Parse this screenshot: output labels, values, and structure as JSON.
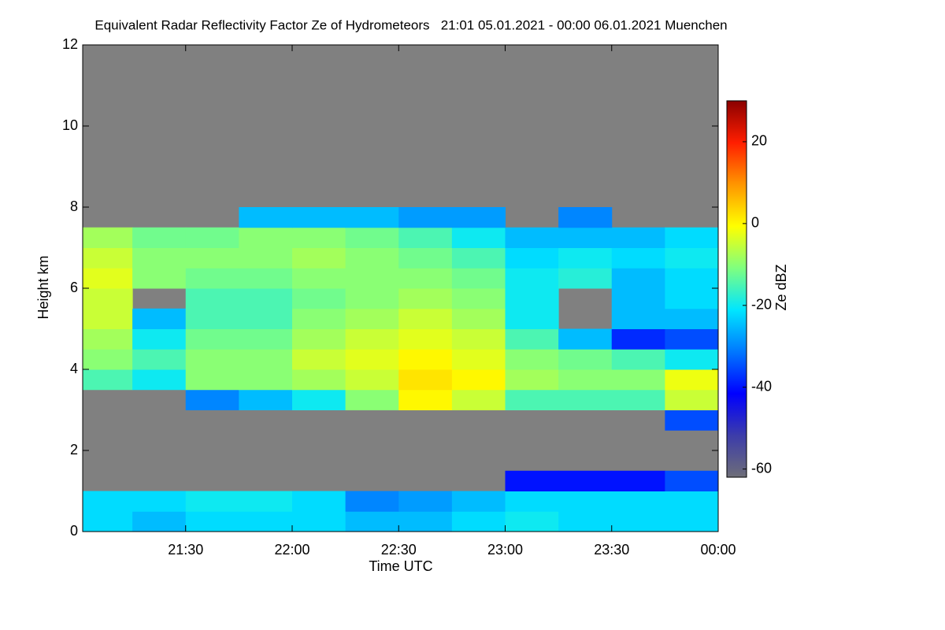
{
  "chart_data": {
    "type": "heatmap",
    "title": "Equivalent Radar Reflectivity Factor Ze of Hydrometeors   21:01 05.01.2021 - 00:00 06.01.2021 Muenchen",
    "xlabel": "Time UTC",
    "ylabel": "Height km",
    "colorbar_label": "Ze dBZ",
    "xlim": [
      21.0167,
      24
    ],
    "xticks": [
      {
        "value": 21.5,
        "label": "21:30"
      },
      {
        "value": 22,
        "label": "22:00"
      },
      {
        "value": 22.5,
        "label": "22:30"
      },
      {
        "value": 23,
        "label": "23:00"
      },
      {
        "value": 23.5,
        "label": "23:30"
      },
      {
        "value": 24,
        "label": "00:00"
      }
    ],
    "ylim": [
      0,
      12
    ],
    "yticks": [
      0,
      2,
      4,
      6,
      8,
      10,
      12
    ],
    "zlim": [
      -62,
      30
    ],
    "zticks": [
      -60,
      -40,
      -20,
      0,
      20
    ],
    "background": "#808080",
    "colormap": [
      "#6e6e78",
      "#3c3caa",
      "#0000ff",
      "#0078ff",
      "#00e6ff",
      "#7fff7f",
      "#ffff00",
      "#ff9600",
      "#ff1e00",
      "#8b0000"
    ],
    "x": [
      21.125,
      21.375,
      21.625,
      21.875,
      22.125,
      22.375,
      22.625,
      22.875,
      23.125,
      23.375,
      23.625,
      23.875
    ],
    "y": [
      0.25,
      0.75,
      1.25,
      1.75,
      2.25,
      2.75,
      3.25,
      3.75,
      4.25,
      4.75,
      5.25,
      5.75,
      6.25,
      6.75,
      7.25,
      7.75,
      8.25,
      8.75,
      9.25,
      9.75,
      10.25,
      10.75,
      11.25,
      11.75
    ],
    "z": [
      [
        -22,
        -25,
        -22,
        -22,
        -22,
        -25,
        -25,
        -22,
        -20,
        -22,
        -22,
        -22
      ],
      [
        -22,
        -22,
        -20,
        -20,
        -22,
        -30,
        -28,
        -25,
        -22,
        -22,
        -22,
        -22
      ],
      [
        null,
        null,
        null,
        null,
        null,
        null,
        null,
        null,
        -40,
        -40,
        -40,
        -35
      ],
      [
        null,
        null,
        null,
        null,
        null,
        null,
        null,
        null,
        null,
        null,
        null,
        null
      ],
      [
        null,
        null,
        null,
        null,
        null,
        null,
        null,
        null,
        null,
        null,
        null,
        null
      ],
      [
        null,
        null,
        null,
        null,
        null,
        null,
        null,
        null,
        null,
        null,
        null,
        -35
      ],
      [
        null,
        null,
        -30,
        -25,
        -20,
        -10,
        0,
        -5,
        -15,
        -15,
        -15,
        -5
      ],
      [
        -15,
        -20,
        -10,
        -10,
        -8,
        -5,
        2,
        0,
        -8,
        -10,
        -10,
        -2
      ],
      [
        -10,
        -15,
        -10,
        -10,
        -5,
        -3,
        0,
        -3,
        -10,
        -12,
        -15,
        -20
      ],
      [
        -8,
        -20,
        -12,
        -12,
        -8,
        -5,
        -3,
        -5,
        -15,
        -25,
        -38,
        -35
      ],
      [
        -5,
        -25,
        -15,
        -15,
        -10,
        -8,
        -5,
        -8,
        -20,
        null,
        -25,
        -25
      ],
      [
        -5,
        null,
        -15,
        -15,
        -12,
        -10,
        -8,
        -10,
        -20,
        null,
        -25,
        -22
      ],
      [
        -3,
        -10,
        -12,
        -12,
        -10,
        -10,
        -10,
        -12,
        -20,
        -18,
        -25,
        -22
      ],
      [
        -5,
        -10,
        -10,
        -10,
        -8,
        -10,
        -12,
        -15,
        -22,
        -20,
        -22,
        -20
      ],
      [
        -8,
        -12,
        -12,
        -10,
        -10,
        -12,
        -15,
        -20,
        -25,
        -25,
        -25,
        -22
      ],
      [
        null,
        null,
        null,
        -25,
        -25,
        -25,
        -28,
        -28,
        null,
        -30,
        null,
        null
      ],
      [
        null,
        null,
        null,
        null,
        null,
        null,
        null,
        null,
        null,
        null,
        null,
        null
      ],
      [
        null,
        null,
        null,
        null,
        null,
        null,
        null,
        null,
        null,
        null,
        null,
        null
      ],
      [
        null,
        null,
        null,
        null,
        null,
        null,
        null,
        null,
        null,
        null,
        null,
        null
      ],
      [
        null,
        null,
        null,
        null,
        null,
        null,
        null,
        null,
        null,
        null,
        null,
        null
      ],
      [
        null,
        null,
        null,
        null,
        null,
        null,
        null,
        null,
        null,
        null,
        null,
        null
      ],
      [
        null,
        null,
        null,
        null,
        null,
        null,
        null,
        null,
        null,
        null,
        null,
        null
      ],
      [
        null,
        null,
        null,
        null,
        null,
        null,
        null,
        null,
        null,
        null,
        null,
        null
      ],
      [
        null,
        null,
        null,
        null,
        null,
        null,
        null,
        null,
        null,
        null,
        null,
        null
      ]
    ]
  }
}
